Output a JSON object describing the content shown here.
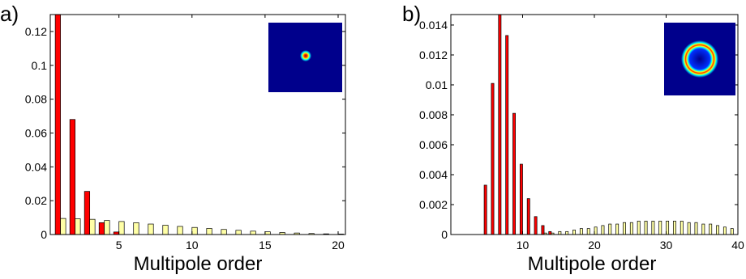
{
  "chart_data": [
    {
      "type": "bar",
      "panel_label": "a)",
      "xlabel": "Multipole order",
      "ylabel": "",
      "xlim": [
        0.3,
        20.5
      ],
      "ylim": [
        0,
        0.13
      ],
      "xticks": [
        5,
        10,
        15,
        20
      ],
      "yticks": [
        0,
        0.02,
        0.04,
        0.06,
        0.08,
        0.1,
        0.12
      ],
      "ytick_labels": [
        "0",
        "0.02",
        "0.04",
        "0.06",
        "0.08",
        "0.1",
        "0.12"
      ],
      "inset": "gaussian-spot",
      "series": [
        {
          "color": "#ff0000",
          "x": [
            1,
            2,
            3,
            4,
            5
          ],
          "values": [
            0.13,
            0.068,
            0.0255,
            0.007,
            0.0015
          ]
        },
        {
          "color": "#ffffa6",
          "x": [
            1,
            2,
            3,
            4,
            5,
            6,
            7,
            8,
            9,
            10,
            11,
            12,
            13,
            14,
            15,
            16,
            17,
            18,
            19,
            20
          ],
          "values": [
            0.0095,
            0.0093,
            0.009,
            0.0083,
            0.0077,
            0.007,
            0.0062,
            0.0055,
            0.0048,
            0.0042,
            0.0036,
            0.003,
            0.0025,
            0.002,
            0.0016,
            0.0012,
            0.0009,
            0.0006,
            0.0004,
            0.0003
          ]
        }
      ]
    },
    {
      "type": "bar",
      "panel_label": "b)",
      "xlabel": "Multipole order",
      "ylabel": "",
      "xlim": [
        0,
        40
      ],
      "ylim": [
        0,
        0.0147
      ],
      "xticks": [
        10,
        20,
        30,
        40
      ],
      "yticks": [
        0,
        0.002,
        0.004,
        0.006,
        0.008,
        0.01,
        0.012,
        0.014
      ],
      "ytick_labels": [
        "0",
        "0.002",
        "0.004",
        "0.006",
        "0.008",
        "0.01",
        "0.012",
        "0.014"
      ],
      "inset": "ring",
      "series": [
        {
          "color": "#ff0000",
          "x": [
            5,
            6,
            7,
            8,
            9,
            10,
            11,
            12,
            13,
            14
          ],
          "values": [
            0.0033,
            0.0101,
            0.0147,
            0.0133,
            0.0081,
            0.0047,
            0.0024,
            0.0012,
            0.0006,
            0.0002
          ]
        },
        {
          "color": "#ffffa6",
          "x": [
            13,
            14,
            15,
            16,
            17,
            18,
            19,
            20,
            21,
            22,
            23,
            24,
            25,
            26,
            27,
            28,
            29,
            30,
            31,
            32,
            33,
            34,
            35,
            36,
            37,
            38,
            39,
            40
          ],
          "values": [
            0.0001,
            0.0001,
            0.0002,
            0.0002,
            0.0003,
            0.0004,
            0.0004,
            0.0005,
            0.0006,
            0.0007,
            0.0007,
            0.0008,
            0.0008,
            0.0009,
            0.0009,
            0.0009,
            0.0009,
            0.0009,
            0.0009,
            0.0009,
            0.0008,
            0.0008,
            0.0007,
            0.0007,
            0.0006,
            0.0005,
            0.0004,
            0.0003
          ]
        }
      ]
    }
  ]
}
